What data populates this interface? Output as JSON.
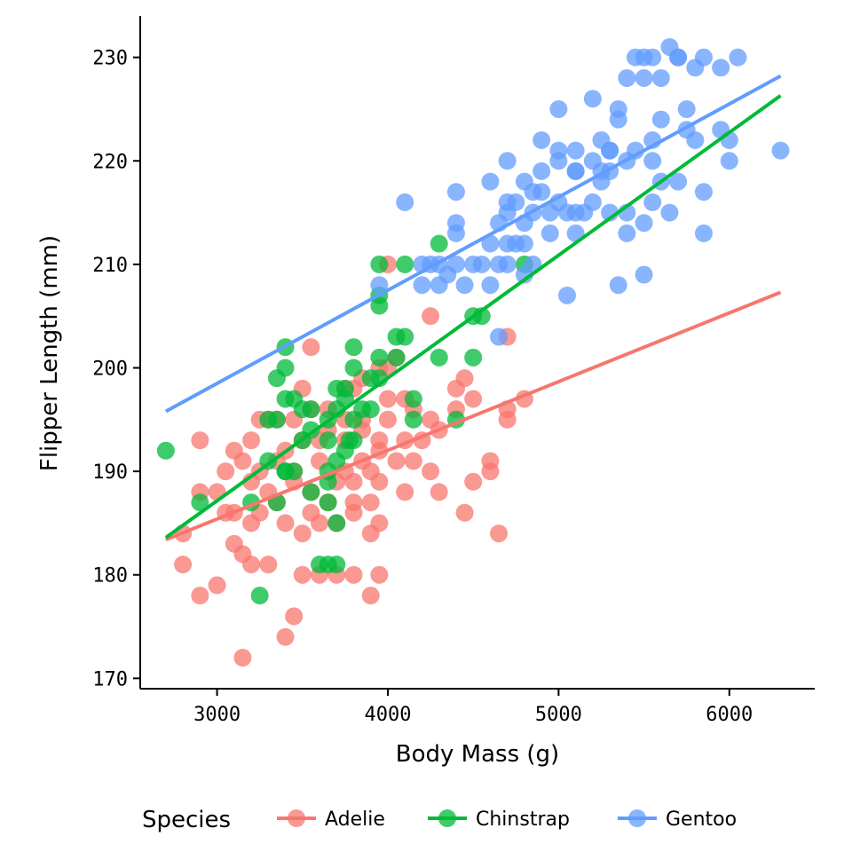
{
  "chart_data": {
    "type": "scatter",
    "title": "",
    "xlabel": "Body Mass (g)",
    "ylabel": "Flipper Length (mm)",
    "xlim": [
      2550,
      6500
    ],
    "ylim": [
      169,
      234
    ],
    "x_ticks": [
      3000,
      4000,
      5000,
      6000
    ],
    "y_ticks": [
      170,
      180,
      190,
      200,
      210,
      220,
      230
    ],
    "x_tick_labels": [
      "3000",
      "4000",
      "5000",
      "6000"
    ],
    "y_tick_labels": [
      "170",
      "180",
      "190",
      "200",
      "210",
      "220",
      "230"
    ],
    "grid": false,
    "legend": {
      "title": "Species",
      "position": "bottom"
    },
    "series": [
      {
        "name": "Adelie",
        "color": "#F8766D",
        "fit_line": {
          "x": [
            2700,
            6300
          ],
          "y": [
            183.4,
            207.3
          ]
        },
        "points": [
          [
            3150,
            172
          ],
          [
            3400,
            174
          ],
          [
            3450,
            176
          ],
          [
            2900,
            178
          ],
          [
            3900,
            178
          ],
          [
            3000,
            179
          ],
          [
            2800,
            181
          ],
          [
            3200,
            181
          ],
          [
            3300,
            181
          ],
          [
            3150,
            182
          ],
          [
            3500,
            180
          ],
          [
            3600,
            180
          ],
          [
            3700,
            180
          ],
          [
            3800,
            180
          ],
          [
            3950,
            180
          ],
          [
            2800,
            184
          ],
          [
            3100,
            183
          ],
          [
            3200,
            185
          ],
          [
            3400,
            185
          ],
          [
            3500,
            184
          ],
          [
            3600,
            185
          ],
          [
            3700,
            185
          ],
          [
            3900,
            184
          ],
          [
            3950,
            185
          ],
          [
            4650,
            184
          ],
          [
            4450,
            186
          ],
          [
            3050,
            186
          ],
          [
            3100,
            186
          ],
          [
            3250,
            186
          ],
          [
            3350,
            187
          ],
          [
            3550,
            186
          ],
          [
            3650,
            187
          ],
          [
            3800,
            186
          ],
          [
            3800,
            187
          ],
          [
            3900,
            187
          ],
          [
            2900,
            188
          ],
          [
            3000,
            188
          ],
          [
            3200,
            189
          ],
          [
            3300,
            188
          ],
          [
            3450,
            189
          ],
          [
            3550,
            188
          ],
          [
            3700,
            189
          ],
          [
            3800,
            189
          ],
          [
            3900,
            190
          ],
          [
            3950,
            189
          ],
          [
            4100,
            188
          ],
          [
            4300,
            188
          ],
          [
            3050,
            190
          ],
          [
            3150,
            191
          ],
          [
            3250,
            190
          ],
          [
            3350,
            191
          ],
          [
            3450,
            190
          ],
          [
            3600,
            191
          ],
          [
            3750,
            190
          ],
          [
            3850,
            191
          ],
          [
            3950,
            192
          ],
          [
            4050,
            191
          ],
          [
            4150,
            191
          ],
          [
            4250,
            190
          ],
          [
            4500,
            189
          ],
          [
            4600,
            190
          ],
          [
            4600,
            191
          ],
          [
            2900,
            193
          ],
          [
            3100,
            192
          ],
          [
            3200,
            193
          ],
          [
            3400,
            192
          ],
          [
            3500,
            193
          ],
          [
            3650,
            194
          ],
          [
            3750,
            193
          ],
          [
            3850,
            194
          ],
          [
            3950,
            193
          ],
          [
            4100,
            193
          ],
          [
            4200,
            193
          ],
          [
            4300,
            194
          ],
          [
            3250,
            195
          ],
          [
            3350,
            195
          ],
          [
            3450,
            195
          ],
          [
            3550,
            196
          ],
          [
            3650,
            196
          ],
          [
            3750,
            195
          ],
          [
            3850,
            195
          ],
          [
            4000,
            195
          ],
          [
            4150,
            196
          ],
          [
            4250,
            195
          ],
          [
            4400,
            196
          ],
          [
            4500,
            197
          ],
          [
            4700,
            195
          ],
          [
            3500,
            198
          ],
          [
            3800,
            198
          ],
          [
            3850,
            199
          ],
          [
            3950,
            200
          ],
          [
            4000,
            197
          ],
          [
            4100,
            197
          ],
          [
            4400,
            198
          ],
          [
            4450,
            199
          ],
          [
            4700,
            196
          ],
          [
            4800,
            197
          ],
          [
            3550,
            202
          ],
          [
            4000,
            200
          ],
          [
            4050,
            201
          ],
          [
            4250,
            205
          ],
          [
            4700,
            203
          ],
          [
            3300,
            195
          ],
          [
            3600,
            193
          ],
          [
            3750,
            198
          ],
          [
            4000,
            210
          ]
        ]
      },
      {
        "name": "Chinstrap",
        "color": "#00BA38",
        "fit_line": {
          "x": [
            2700,
            6300
          ],
          "y": [
            183.6,
            226.3
          ]
        },
        "points": [
          [
            2700,
            192
          ],
          [
            2900,
            187
          ],
          [
            3250,
            178
          ],
          [
            3200,
            187
          ],
          [
            3300,
            191
          ],
          [
            3350,
            187
          ],
          [
            3400,
            190
          ],
          [
            3450,
            190
          ],
          [
            3300,
            195
          ],
          [
            3350,
            195
          ],
          [
            3400,
            197
          ],
          [
            3400,
            202
          ],
          [
            3400,
            200
          ],
          [
            3350,
            199
          ],
          [
            3450,
            197
          ],
          [
            3500,
            193
          ],
          [
            3500,
            196
          ],
          [
            3550,
            194
          ],
          [
            3550,
            196
          ],
          [
            3550,
            188
          ],
          [
            3600,
            181
          ],
          [
            3650,
            181
          ],
          [
            3650,
            189
          ],
          [
            3650,
            187
          ],
          [
            3650,
            193
          ],
          [
            3650,
            195
          ],
          [
            3700,
            181
          ],
          [
            3700,
            185
          ],
          [
            3700,
            191
          ],
          [
            3700,
            196
          ],
          [
            3700,
            198
          ],
          [
            3750,
            198
          ],
          [
            3750,
            192
          ],
          [
            3750,
            197
          ],
          [
            3800,
            193
          ],
          [
            3800,
            195
          ],
          [
            3800,
            200
          ],
          [
            3800,
            202
          ],
          [
            3850,
            196
          ],
          [
            3900,
            196
          ],
          [
            3950,
            199
          ],
          [
            3950,
            201
          ],
          [
            3950,
            210
          ],
          [
            3950,
            206
          ],
          [
            3950,
            207
          ],
          [
            4050,
            203
          ],
          [
            4050,
            201
          ],
          [
            4100,
            203
          ],
          [
            4100,
            210
          ],
          [
            4150,
            197
          ],
          [
            4150,
            195
          ],
          [
            4300,
            212
          ],
          [
            4300,
            201
          ],
          [
            4400,
            195
          ],
          [
            4500,
            201
          ],
          [
            4550,
            205
          ],
          [
            4500,
            205
          ],
          [
            4800,
            210
          ],
          [
            3400,
            190
          ],
          [
            3650,
            190
          ],
          [
            3775,
            193
          ],
          [
            3900,
            199
          ]
        ]
      },
      {
        "name": "Gentoo",
        "color": "#619CFF",
        "fit_line": {
          "x": [
            2700,
            6300
          ],
          "y": [
            195.8,
            228.2
          ]
        },
        "points": [
          [
            3950,
            208
          ],
          [
            4100,
            216
          ],
          [
            4200,
            210
          ],
          [
            4250,
            210
          ],
          [
            4200,
            208
          ],
          [
            4300,
            208
          ],
          [
            4300,
            210
          ],
          [
            4350,
            209
          ],
          [
            4400,
            210
          ],
          [
            4400,
            213
          ],
          [
            4400,
            214
          ],
          [
            4450,
            208
          ],
          [
            4500,
            210
          ],
          [
            4550,
            210
          ],
          [
            4600,
            208
          ],
          [
            4600,
            212
          ],
          [
            4600,
            218
          ],
          [
            4650,
            214
          ],
          [
            4650,
            210
          ],
          [
            4700,
            210
          ],
          [
            4700,
            212
          ],
          [
            4700,
            215
          ],
          [
            4700,
            216
          ],
          [
            4750,
            212
          ],
          [
            4750,
            216
          ],
          [
            4800,
            209
          ],
          [
            4800,
            214
          ],
          [
            4800,
            218
          ],
          [
            4850,
            210
          ],
          [
            4850,
            215
          ],
          [
            4850,
            217
          ],
          [
            4900,
            217
          ],
          [
            4900,
            222
          ],
          [
            4950,
            215
          ],
          [
            4950,
            213
          ],
          [
            5000,
            216
          ],
          [
            5000,
            220
          ],
          [
            5000,
            221
          ],
          [
            5050,
            215
          ],
          [
            5050,
            207
          ],
          [
            5100,
            213
          ],
          [
            5100,
            215
          ],
          [
            5100,
            219
          ],
          [
            5100,
            221
          ],
          [
            5150,
            215
          ],
          [
            5200,
            216
          ],
          [
            5200,
            220
          ],
          [
            5250,
            219
          ],
          [
            5250,
            222
          ],
          [
            5300,
            219
          ],
          [
            5300,
            215
          ],
          [
            5300,
            221
          ],
          [
            5350,
            208
          ],
          [
            5350,
            224
          ],
          [
            5400,
            213
          ],
          [
            5400,
            215
          ],
          [
            5400,
            220
          ],
          [
            5450,
            221
          ],
          [
            5500,
            209
          ],
          [
            5500,
            214
          ],
          [
            5550,
            216
          ],
          [
            5550,
            220
          ],
          [
            5550,
            222
          ],
          [
            5600,
            218
          ],
          [
            5600,
            228
          ],
          [
            5650,
            215
          ],
          [
            5650,
            231
          ],
          [
            5700,
            218
          ],
          [
            5700,
            230
          ],
          [
            5750,
            225
          ],
          [
            5800,
            222
          ],
          [
            5850,
            213
          ],
          [
            5850,
            217
          ],
          [
            5950,
            223
          ],
          [
            6000,
            220
          ],
          [
            6050,
            230
          ],
          [
            6300,
            221
          ],
          [
            5000,
            225
          ],
          [
            5200,
            226
          ],
          [
            5350,
            225
          ],
          [
            5400,
            228
          ],
          [
            5500,
            228
          ],
          [
            5550,
            230
          ],
          [
            5700,
            230
          ],
          [
            5800,
            229
          ],
          [
            5950,
            229
          ],
          [
            5850,
            230
          ],
          [
            4400,
            217
          ],
          [
            4650,
            203
          ],
          [
            4700,
            220
          ],
          [
            4900,
            219
          ],
          [
            5250,
            218
          ],
          [
            5450,
            230
          ],
          [
            5500,
            230
          ],
          [
            5600,
            224
          ],
          [
            5750,
            223
          ],
          [
            6000,
            222
          ],
          [
            4800,
            212
          ],
          [
            5300,
            221
          ],
          [
            5100,
            219
          ]
        ]
      }
    ]
  }
}
